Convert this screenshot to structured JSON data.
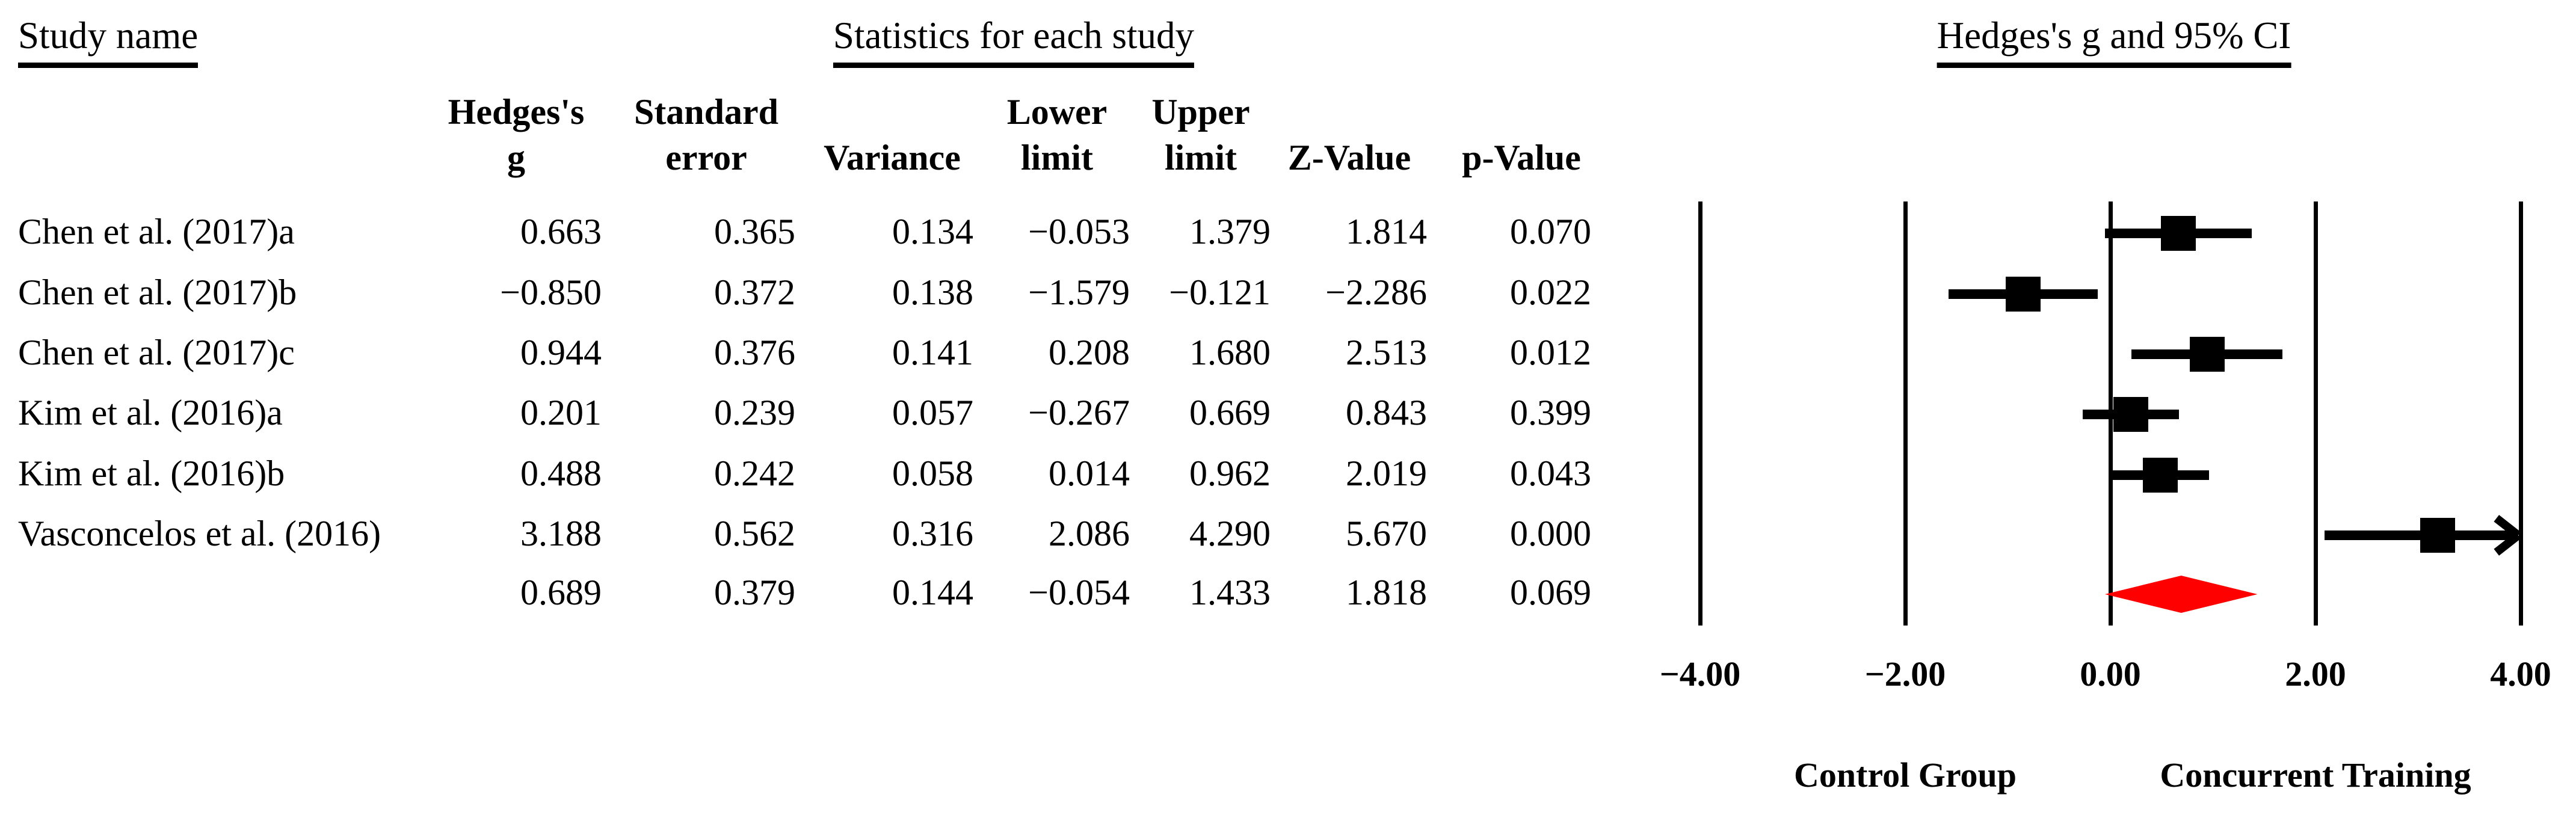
{
  "headers": {
    "study_name": "Study name",
    "statistics": "Statistics for each study",
    "plot": "Hedges's g and 95% CI"
  },
  "table": {
    "columns": [
      {
        "line1": "Hedges's",
        "line2": "g"
      },
      {
        "line1": "Standard",
        "line2": "error"
      },
      {
        "line1": "",
        "line2": "Variance"
      },
      {
        "line1": "Lower",
        "line2": "limit"
      },
      {
        "line1": "Upper",
        "line2": "limit"
      },
      {
        "line1": "",
        "line2": "Z-Value"
      },
      {
        "line1": "",
        "line2": "p-Value"
      }
    ],
    "rows": [
      {
        "study": "Chen et al. (2017)a",
        "g": "0.663",
        "se": "0.365",
        "variance": "0.134",
        "lower": "−0.053",
        "upper": "1.379",
        "z": "1.814",
        "p": "0.070"
      },
      {
        "study": "Chen et al. (2017)b",
        "g": "−0.850",
        "se": "0.372",
        "variance": "0.138",
        "lower": "−1.579",
        "upper": "−0.121",
        "z": "−2.286",
        "p": "0.022"
      },
      {
        "study": "Chen et al. (2017)c",
        "g": "0.944",
        "se": "0.376",
        "variance": "0.141",
        "lower": "0.208",
        "upper": "1.680",
        "z": "2.513",
        "p": "0.012"
      },
      {
        "study": "Kim et al. (2016)a",
        "g": "0.201",
        "se": "0.239",
        "variance": "0.057",
        "lower": "−0.267",
        "upper": "0.669",
        "z": "0.843",
        "p": "0.399"
      },
      {
        "study": "Kim et al. (2016)b",
        "g": "0.488",
        "se": "0.242",
        "variance": "0.058",
        "lower": "0.014",
        "upper": "0.962",
        "z": "2.019",
        "p": "0.043"
      },
      {
        "study": "Vasconcelos et al. (2016)",
        "g": "3.188",
        "se": "0.562",
        "variance": "0.316",
        "lower": "2.086",
        "upper": "4.290",
        "z": "5.670",
        "p": "0.000"
      },
      {
        "study": "",
        "g": "0.689",
        "se": "0.379",
        "variance": "0.144",
        "lower": "−0.054",
        "upper": "1.433",
        "z": "1.818",
        "p": "0.069"
      }
    ]
  },
  "chart_data": {
    "type": "scatter",
    "variant": "forest",
    "title": "Hedges's g and 95% CI",
    "xlim": [
      -4,
      4
    ],
    "ticks": [
      -4,
      -2,
      0,
      2,
      4
    ],
    "tick_labels": [
      "−4.00",
      "−2.00",
      "0.00",
      "2.00",
      "4.00"
    ],
    "grid": "vertical-lines",
    "legend_position": "none",
    "marker_color": "#000000",
    "summary_color": "#ff0000",
    "group_labels": {
      "left": "Control Group",
      "right": "Concurrent Training"
    },
    "studies": [
      {
        "name": "Chen et al. (2017)a",
        "g": 0.663,
        "lower": -0.053,
        "upper": 1.379
      },
      {
        "name": "Chen et al. (2017)b",
        "g": -0.85,
        "lower": -1.579,
        "upper": -0.121
      },
      {
        "name": "Chen et al. (2017)c",
        "g": 0.944,
        "lower": 0.208,
        "upper": 1.68
      },
      {
        "name": "Kim et al. (2016)a",
        "g": 0.201,
        "lower": -0.267,
        "upper": 0.669
      },
      {
        "name": "Kim et al. (2016)b",
        "g": 0.488,
        "lower": 0.014,
        "upper": 0.962
      },
      {
        "name": "Vasconcelos et al. (2016)",
        "g": 3.188,
        "lower": 2.086,
        "upper": 4.29
      }
    ],
    "summary": {
      "g": 0.689,
      "lower": -0.054,
      "upper": 1.433,
      "shape": "diamond"
    }
  }
}
